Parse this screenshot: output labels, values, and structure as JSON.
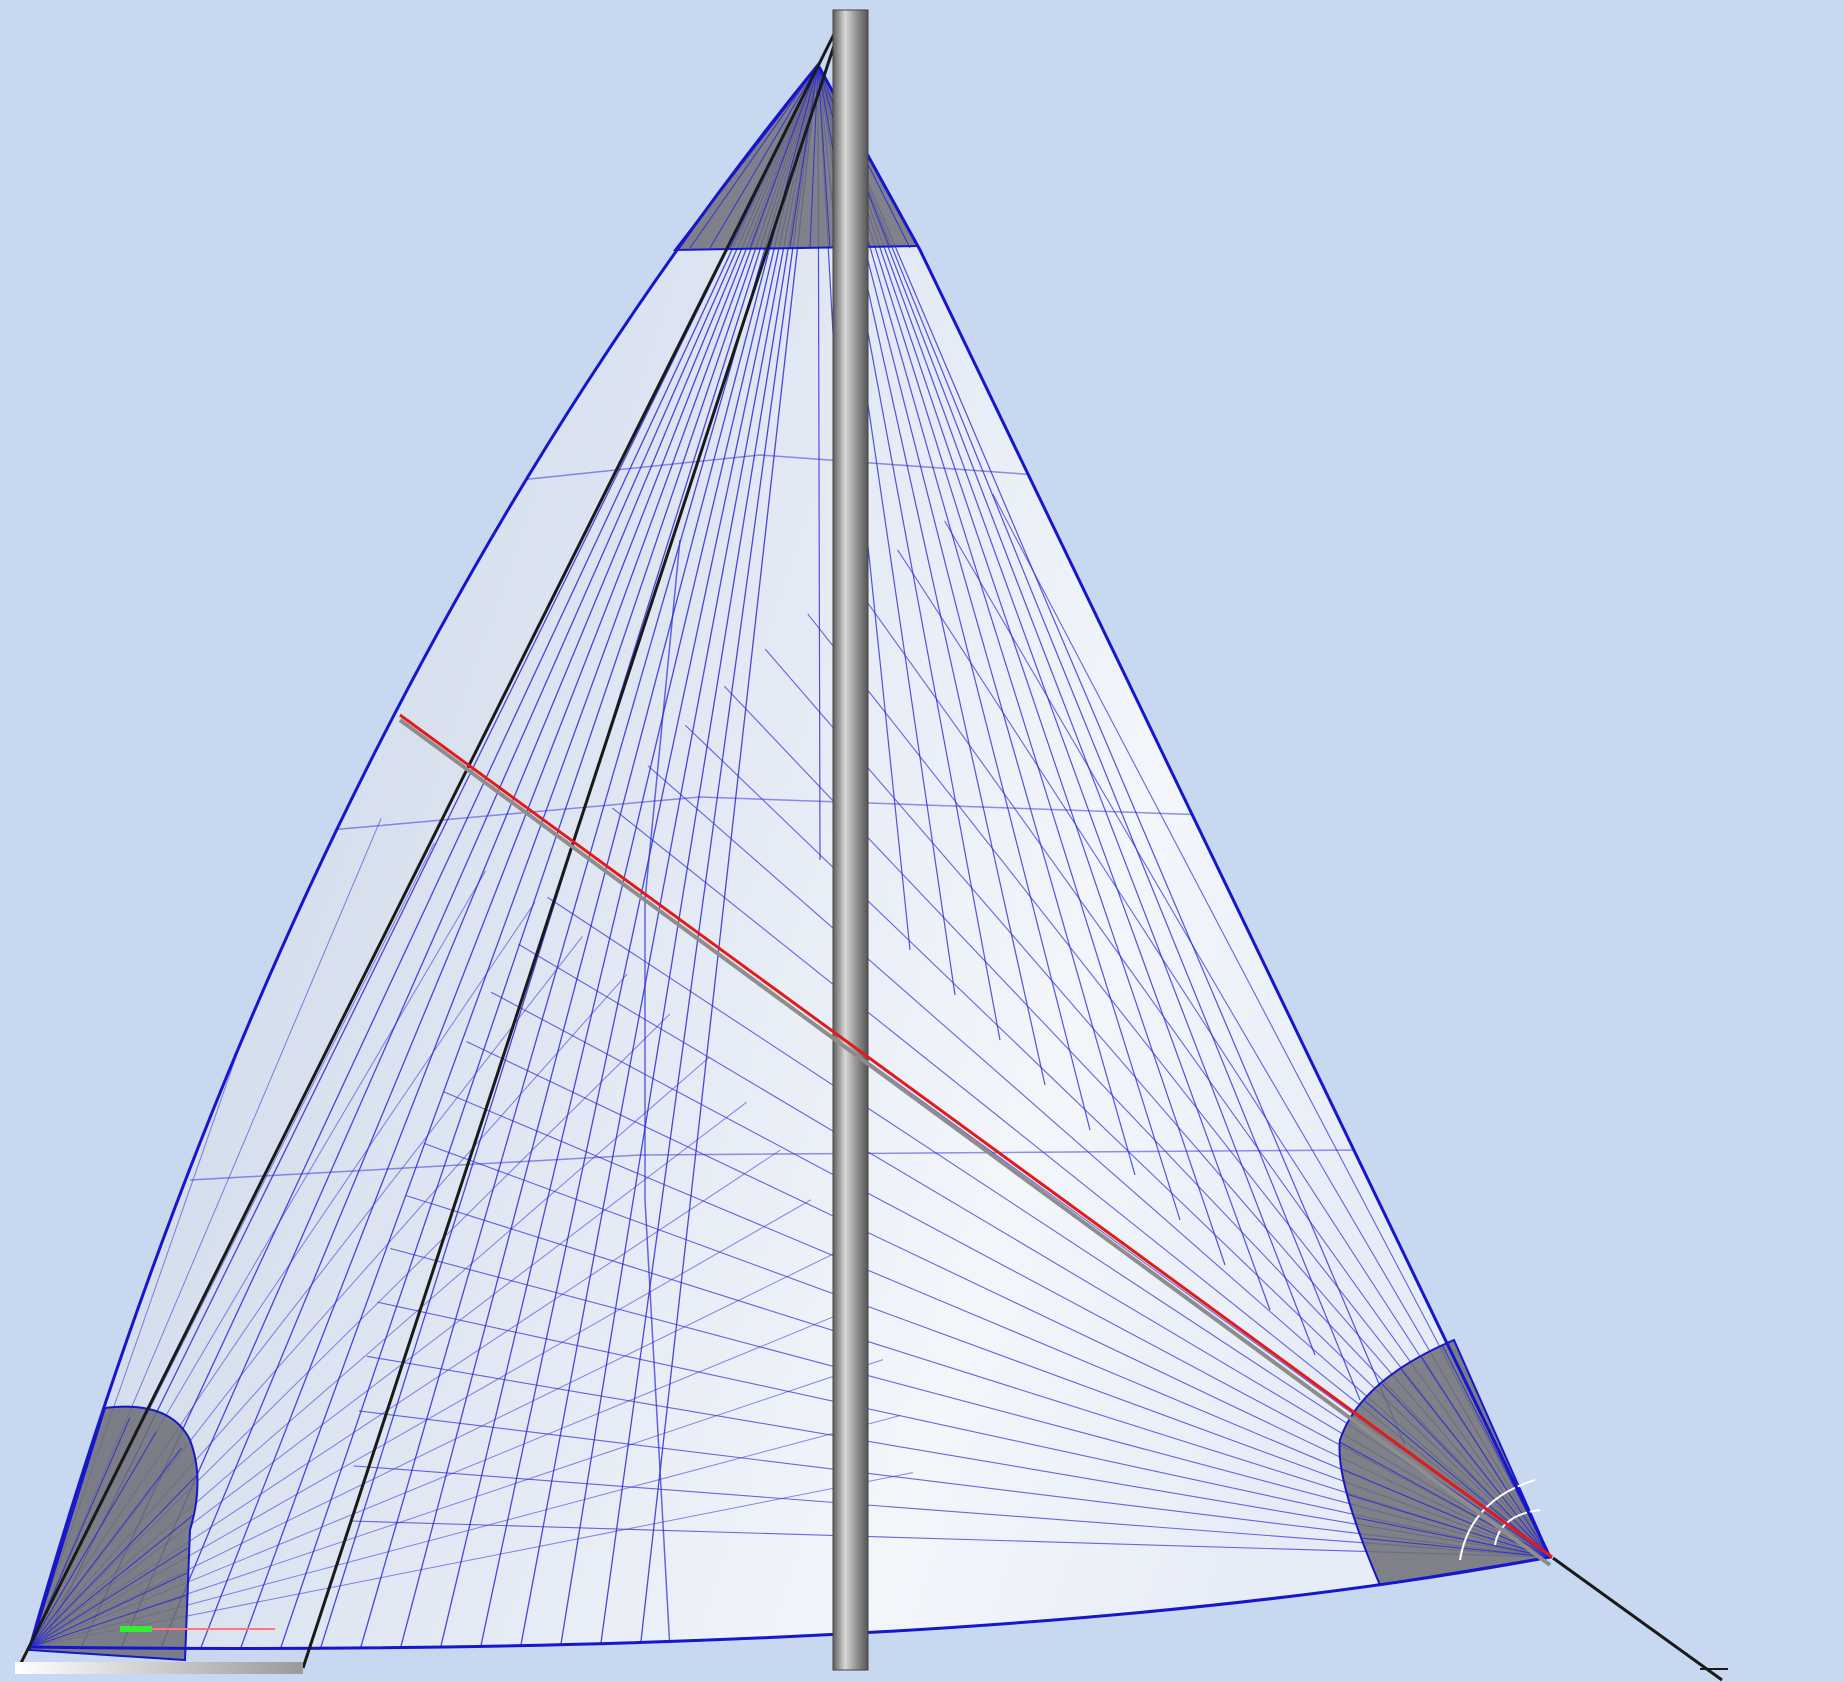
{
  "scene": {
    "type": "3d-sail-design-viewport",
    "background_color": "#c8d8f0",
    "sail_fill_color": "#e4ebf6",
    "sail_highlight_color": "#f4f7fc",
    "seam_color": "#2a2ad8",
    "edge_color": "#1616cc",
    "reinforcement_color": "#707078",
    "mast_color": "#8c8c8c",
    "sheet_line_color": "#1a1a1a",
    "measure_line_color": "#e41a1a",
    "axis_x_color": "#33ee33",
    "axis_y_color": "#ff5555"
  }
}
